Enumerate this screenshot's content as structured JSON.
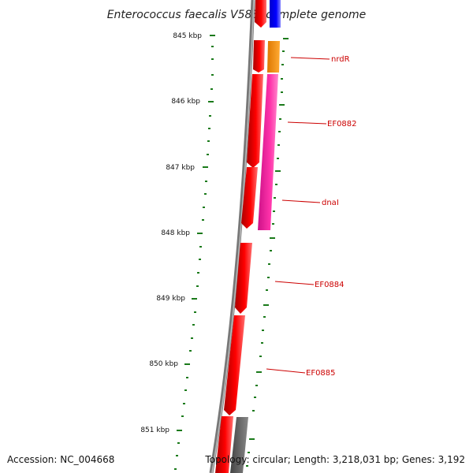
{
  "title": "Enterococcus faecalis V583, complete genome",
  "footer": {
    "accession": "Accession: NC_004668",
    "summary": "Topology: circular; Length: 3,218,031 bp; Genes: 3,192"
  },
  "kbp_labels": [
    "845 kbp",
    "846 kbp",
    "847 kbp",
    "848 kbp",
    "849 kbp",
    "850 kbp",
    "851 kbp"
  ],
  "gene_labels": [
    "nrdR",
    "EF0882",
    "dnaI",
    "EF0884",
    "EF0885"
  ],
  "colors": {
    "forward_gene": "#ff0000",
    "backbone": "#888888",
    "tick": "#1a7a1a",
    "label": "#cc0000",
    "orange_gene": "#ff9900",
    "magenta_gene": "#ff33aa",
    "blue_gene": "#0000ee",
    "gray_gene": "#666666"
  }
}
